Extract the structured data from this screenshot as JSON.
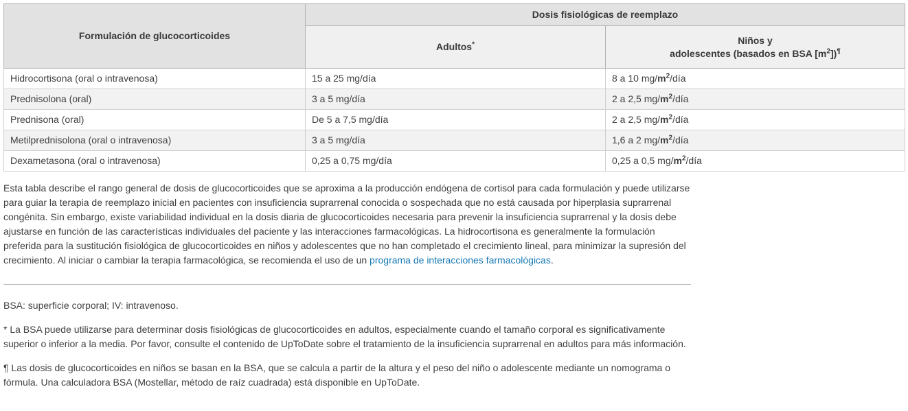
{
  "colors": {
    "link": "#1778b5",
    "header_background": "#e2e2e2",
    "subheader_background": "#f0f0f0",
    "stripe_background": "#f2f2f2"
  },
  "table": {
    "formulation_header": "Formulación de glucocorticoides",
    "group_header": "Dosis fisiológicas de reemplazo",
    "adults_header": "Adultos",
    "adults_footnote_mark": "*",
    "children_header_line1": "Niños y",
    "children_header_line2_pre": "adolescentes (basados en BSA [m",
    "children_header_sup": "2",
    "children_header_line2_post": "])",
    "children_footnote_mark": "¶",
    "unit_bold": "m",
    "unit_sup": "2",
    "rows": [
      {
        "formulation": "Hidrocortisona (oral o intravenosa)",
        "adults": "15 a 25 mg/día",
        "children_pre": "8 a 10 mg/",
        "children_post": "/día"
      },
      {
        "formulation": "Prednisolona (oral)",
        "adults": "3 a 5 mg/día",
        "children_pre": "2 a 2,5 mg/",
        "children_post": "/día"
      },
      {
        "formulation": "Prednisona (oral)",
        "adults": "De 5 a 7,5 mg/día",
        "children_pre": "2 a 2,5 mg/",
        "children_post": "/día"
      },
      {
        "formulation": "Metilprednisolona (oral o intravenosa)",
        "adults": "3 a 5 mg/día",
        "children_pre": "1,6 a 2 mg/",
        "children_post": "/día"
      },
      {
        "formulation": "Dexametasona (oral o intravenosa)",
        "adults": "0,25 a 0,75 mg/día",
        "children_pre": "0,25 a 0,5 mg/",
        "children_post": "/día"
      }
    ]
  },
  "caption": {
    "text_before_link": "Esta tabla describe el rango general de dosis de glucocorticoides que se aproxima a la producción endógena de cortisol para cada formulación y puede utilizarse para guiar la terapia de reemplazo inicial en pacientes con insuficiencia suprarrenal conocida o sospechada que no está causada por hiperplasia suprarrenal congénita. Sin embargo, existe variabilidad individual en la dosis diaria de glucocorticoides necesaria para prevenir la insuficiencia suprarrenal y la dosis debe ajustarse en función de las características individuales del paciente y las interacciones farmacológicas. La hidrocortisona es generalmente la formulación preferida para la sustitución fisiológica de glucocorticoides en niños y adolescentes que no han completado el crecimiento lineal, para minimizar la supresión del crecimiento. Al iniciar o cambiar la terapia farmacológica, se recomienda el uso de un",
    "link_text": "programa de interacciones farmacológicas",
    "text_after_link": "."
  },
  "footnotes": {
    "abbreviations": "BSA: superficie corporal; IV: intravenoso.",
    "asterisk": "* La BSA puede utilizarse para determinar dosis fisiológicas de glucocorticoides en adultos, especialmente cuando el tamaño corporal es significativamente superior o inferior a la media. Por favor, consulte el contenido de UpToDate sobre el tratamiento de la insuficiencia suprarrenal en adultos para más información.",
    "pilcrow": "¶ Las dosis de glucocorticoides en niños se basan en la BSA, que se calcula a partir de la altura y el peso del niño o adolescente mediante un nomograma o fórmula. Una calculadora BSA (Mostellar, método de raíz cuadrada) está disponible en UpToDate."
  }
}
